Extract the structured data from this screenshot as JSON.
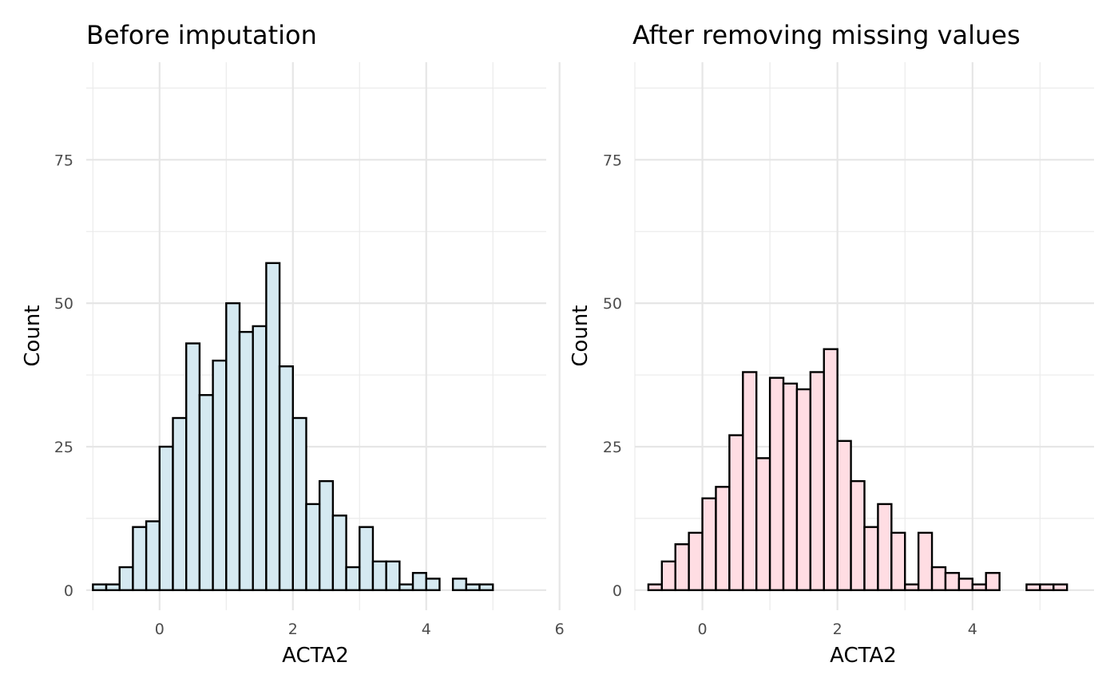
{
  "chart_data": [
    {
      "type": "bar",
      "title": "Before imputation",
      "xlabel": "ACTA2",
      "ylabel": "Count",
      "xlim": [
        -1.1,
        5.8
      ],
      "ylim": [
        -3.5,
        92
      ],
      "x_ticks": [
        0,
        2,
        4,
        6
      ],
      "y_ticks": [
        0,
        25,
        50,
        75
      ],
      "grid": true,
      "fill_color": "#d5e9f1",
      "bins": [
        {
          "x0": -1.0,
          "x1": -0.8,
          "count": 1
        },
        {
          "x0": -0.8,
          "x1": -0.6,
          "count": 1
        },
        {
          "x0": -0.6,
          "x1": -0.4,
          "count": 4
        },
        {
          "x0": -0.4,
          "x1": -0.2,
          "count": 11
        },
        {
          "x0": -0.2,
          "x1": 0.0,
          "count": 12
        },
        {
          "x0": 0.0,
          "x1": 0.2,
          "count": 25
        },
        {
          "x0": 0.2,
          "x1": 0.4,
          "count": 30
        },
        {
          "x0": 0.4,
          "x1": 0.6,
          "count": 43
        },
        {
          "x0": 0.6,
          "x1": 0.8,
          "count": 34
        },
        {
          "x0": 0.8,
          "x1": 1.0,
          "count": 40
        },
        {
          "x0": 1.0,
          "x1": 1.2,
          "count": 50
        },
        {
          "x0": 1.2,
          "x1": 1.4,
          "count": 45
        },
        {
          "x0": 1.4,
          "x1": 1.6,
          "count": 46
        },
        {
          "x0": 1.6,
          "x1": 1.8,
          "count": 57
        },
        {
          "x0": 1.8,
          "x1": 2.0,
          "count": 39
        },
        {
          "x0": 2.0,
          "x1": 2.2,
          "count": 30
        },
        {
          "x0": 2.2,
          "x1": 2.4,
          "count": 15
        },
        {
          "x0": 2.4,
          "x1": 2.6,
          "count": 19
        },
        {
          "x0": 2.6,
          "x1": 2.8,
          "count": 13
        },
        {
          "x0": 2.8,
          "x1": 3.0,
          "count": 4
        },
        {
          "x0": 3.0,
          "x1": 3.2,
          "count": 11
        },
        {
          "x0": 3.2,
          "x1": 3.4,
          "count": 5
        },
        {
          "x0": 3.4,
          "x1": 3.6,
          "count": 5
        },
        {
          "x0": 3.6,
          "x1": 3.8,
          "count": 1
        },
        {
          "x0": 3.8,
          "x1": 4.0,
          "count": 3
        },
        {
          "x0": 4.0,
          "x1": 4.2,
          "count": 2
        },
        {
          "x0": 4.2,
          "x1": 4.4,
          "count": 0
        },
        {
          "x0": 4.4,
          "x1": 4.6,
          "count": 2
        },
        {
          "x0": 4.6,
          "x1": 4.8,
          "count": 1
        },
        {
          "x0": 4.8,
          "x1": 5.0,
          "count": 1
        }
      ]
    },
    {
      "type": "bar",
      "title": "After removing missing values",
      "xlabel": "ACTA2",
      "ylabel": "Count",
      "xlim": [
        -1.0,
        5.8
      ],
      "ylim": [
        -3.5,
        92
      ],
      "x_ticks": [
        0,
        2,
        4
      ],
      "y_ticks": [
        0,
        25,
        50,
        75
      ],
      "grid": true,
      "fill_color": "#ffdde3",
      "bins": [
        {
          "x0": -0.8,
          "x1": -0.6,
          "count": 1
        },
        {
          "x0": -0.6,
          "x1": -0.4,
          "count": 5
        },
        {
          "x0": -0.4,
          "x1": -0.2,
          "count": 8
        },
        {
          "x0": -0.2,
          "x1": 0.0,
          "count": 10
        },
        {
          "x0": 0.0,
          "x1": 0.2,
          "count": 16
        },
        {
          "x0": 0.2,
          "x1": 0.4,
          "count": 18
        },
        {
          "x0": 0.4,
          "x1": 0.6,
          "count": 27
        },
        {
          "x0": 0.6,
          "x1": 0.8,
          "count": 38
        },
        {
          "x0": 0.8,
          "x1": 1.0,
          "count": 23
        },
        {
          "x0": 1.0,
          "x1": 1.2,
          "count": 37
        },
        {
          "x0": 1.2,
          "x1": 1.4,
          "count": 36
        },
        {
          "x0": 1.4,
          "x1": 1.6,
          "count": 35
        },
        {
          "x0": 1.6,
          "x1": 1.8,
          "count": 38
        },
        {
          "x0": 1.8,
          "x1": 2.0,
          "count": 42
        },
        {
          "x0": 2.0,
          "x1": 2.2,
          "count": 26
        },
        {
          "x0": 2.2,
          "x1": 2.4,
          "count": 19
        },
        {
          "x0": 2.4,
          "x1": 2.6,
          "count": 11
        },
        {
          "x0": 2.6,
          "x1": 2.8,
          "count": 15
        },
        {
          "x0": 2.8,
          "x1": 3.0,
          "count": 10
        },
        {
          "x0": 3.0,
          "x1": 3.2,
          "count": 1
        },
        {
          "x0": 3.2,
          "x1": 3.4,
          "count": 10
        },
        {
          "x0": 3.4,
          "x1": 3.6,
          "count": 4
        },
        {
          "x0": 3.6,
          "x1": 3.8,
          "count": 3
        },
        {
          "x0": 3.8,
          "x1": 4.0,
          "count": 2
        },
        {
          "x0": 4.0,
          "x1": 4.2,
          "count": 1
        },
        {
          "x0": 4.2,
          "x1": 4.4,
          "count": 3
        },
        {
          "x0": 4.4,
          "x1": 4.6,
          "count": 0
        },
        {
          "x0": 4.6,
          "x1": 4.8,
          "count": 0
        },
        {
          "x0": 4.8,
          "x1": 5.0,
          "count": 1
        },
        {
          "x0": 5.0,
          "x1": 5.2,
          "count": 1
        },
        {
          "x0": 5.2,
          "x1": 5.4,
          "count": 1
        }
      ]
    }
  ]
}
